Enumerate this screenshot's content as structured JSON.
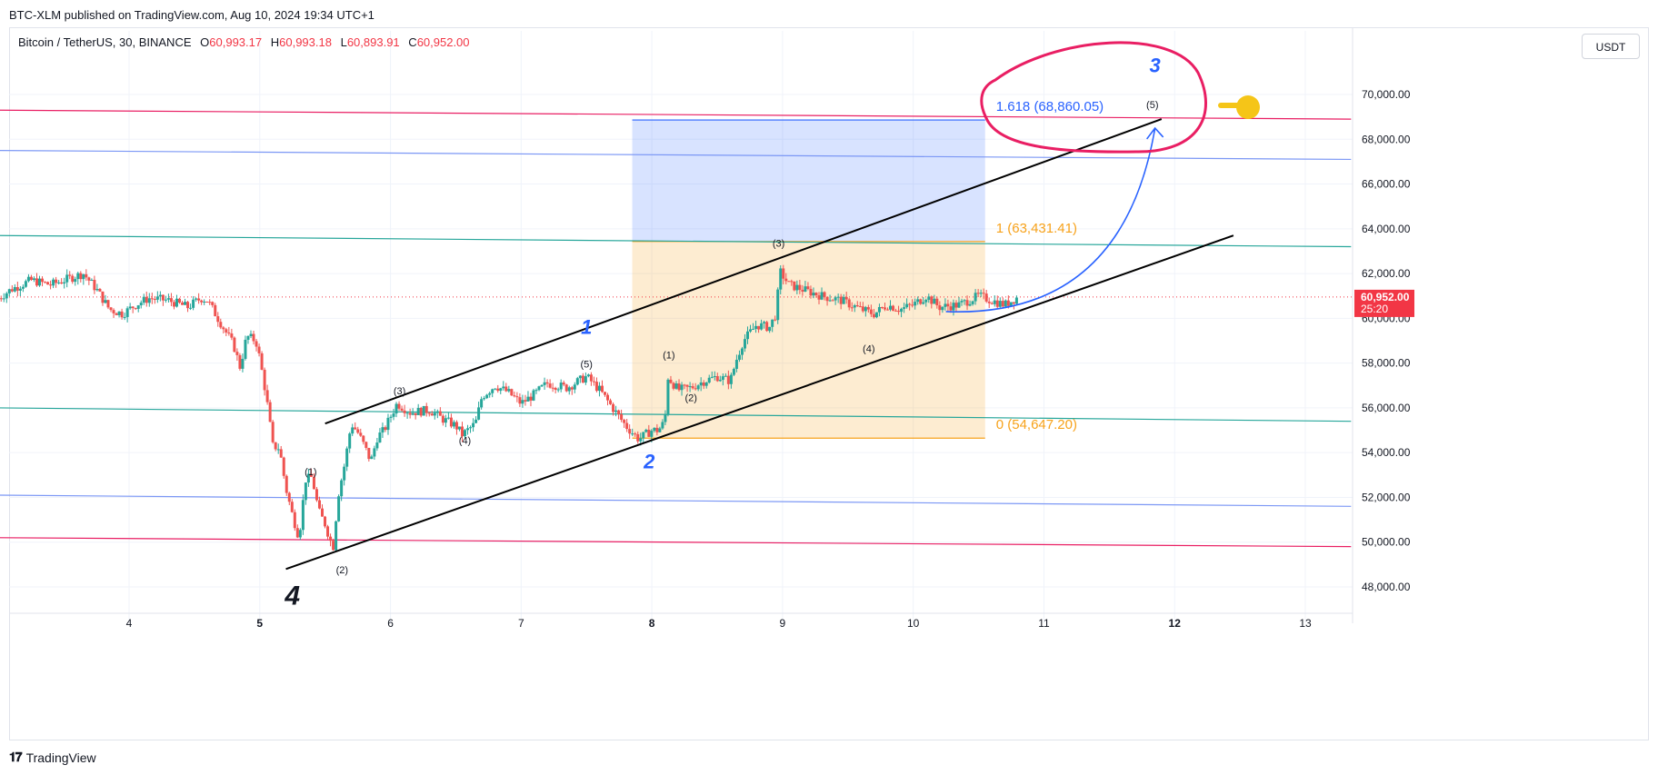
{
  "header": {
    "published": "BTC-XLM published on TradingView.com, Aug 10, 2024 19:34 UTC+1"
  },
  "legend": {
    "symbol": "Bitcoin / TetherUS, 30, BINANCE",
    "o_label": "O",
    "o_value": "60,993.17",
    "h_label": "H",
    "h_value": "60,993.18",
    "l_label": "L",
    "l_value": "60,893.91",
    "c_label": "C",
    "c_value": "60,952.00"
  },
  "currency_button": "USDT",
  "footer": {
    "brand": "TradingView",
    "logo_icon": "tradingview-logo-icon"
  },
  "colors": {
    "up": "#26a69a",
    "down": "#ef5350",
    "price_tag": "#f23645",
    "fib_blue": "#2962ff",
    "fib_orange": "#f7a21b",
    "ellipse": "#e91e63",
    "channel": "#000000",
    "hand": "#f5c518"
  },
  "chart_data": {
    "type": "candlestick",
    "x_axis": {
      "ticks": [
        "4",
        "5",
        "6",
        "7",
        "8",
        "9",
        "10",
        "11",
        "12",
        "13"
      ],
      "bold_ticks": [
        "5",
        "8",
        "12"
      ]
    },
    "y_axis": {
      "range": [
        46800,
        72400
      ],
      "ticks": [
        "48,000.00",
        "50,000.00",
        "52,000.00",
        "54,000.00",
        "56,000.00",
        "58,000.00",
        "60,000.00",
        "62,000.00",
        "64,000.00",
        "66,000.00",
        "68,000.00",
        "70,000.00"
      ]
    },
    "last_price": {
      "value": 60952,
      "label": "60,952.00",
      "countdown": "25:20"
    },
    "close_path": [
      [
        3.0,
        60900
      ],
      [
        3.1,
        61300
      ],
      [
        3.25,
        61700
      ],
      [
        3.4,
        61500
      ],
      [
        3.55,
        61800
      ],
      [
        3.65,
        62000
      ],
      [
        3.75,
        61300
      ],
      [
        3.85,
        60400
      ],
      [
        3.95,
        60200
      ],
      [
        4.05,
        60600
      ],
      [
        4.15,
        60900
      ],
      [
        4.3,
        60800
      ],
      [
        4.45,
        60500
      ],
      [
        4.55,
        60900
      ],
      [
        4.6,
        60800
      ],
      [
        4.7,
        59800
      ],
      [
        4.8,
        58800
      ],
      [
        4.85,
        57800
      ],
      [
        4.9,
        59200
      ],
      [
        4.97,
        59000
      ],
      [
        5.0,
        58200
      ],
      [
        5.05,
        56500
      ],
      [
        5.1,
        54300
      ],
      [
        5.15,
        54200
      ],
      [
        5.2,
        52400
      ],
      [
        5.25,
        51200
      ],
      [
        5.3,
        50200
      ],
      [
        5.35,
        52800
      ],
      [
        5.4,
        52900
      ],
      [
        5.45,
        51400
      ],
      [
        5.5,
        50800
      ],
      [
        5.56,
        49700
      ],
      [
        5.6,
        52100
      ],
      [
        5.65,
        53500
      ],
      [
        5.7,
        55300
      ],
      [
        5.75,
        54900
      ],
      [
        5.8,
        54300
      ],
      [
        5.85,
        53600
      ],
      [
        5.9,
        54700
      ],
      [
        5.95,
        55000
      ],
      [
        6.05,
        56200
      ],
      [
        6.15,
        55800
      ],
      [
        6.3,
        55900
      ],
      [
        6.4,
        55500
      ],
      [
        6.5,
        55200
      ],
      [
        6.55,
        54800
      ],
      [
        6.65,
        55300
      ],
      [
        6.7,
        56500
      ],
      [
        6.8,
        57000
      ],
      [
        6.9,
        56700
      ],
      [
        7.0,
        56200
      ],
      [
        7.1,
        56600
      ],
      [
        7.2,
        57100
      ],
      [
        7.35,
        56900
      ],
      [
        7.5,
        57400
      ],
      [
        7.6,
        56800
      ],
      [
        7.7,
        56000
      ],
      [
        7.8,
        55200
      ],
      [
        7.9,
        54600
      ],
      [
        8.0,
        55000
      ],
      [
        8.05,
        55000
      ],
      [
        8.1,
        55400
      ],
      [
        8.12,
        57400
      ],
      [
        8.2,
        56800
      ],
      [
        8.3,
        56900
      ],
      [
        8.4,
        57200
      ],
      [
        8.5,
        57400
      ],
      [
        8.6,
        57200
      ],
      [
        8.65,
        58200
      ],
      [
        8.7,
        59000
      ],
      [
        8.8,
        59700
      ],
      [
        8.9,
        59600
      ],
      [
        8.95,
        60200
      ],
      [
        8.98,
        62100
      ],
      [
        9.05,
        61500
      ],
      [
        9.15,
        61300
      ],
      [
        9.3,
        61000
      ],
      [
        9.45,
        60800
      ],
      [
        9.6,
        60400
      ],
      [
        9.7,
        60200
      ],
      [
        9.8,
        60600
      ],
      [
        9.9,
        60400
      ],
      [
        10.0,
        60600
      ],
      [
        10.1,
        61000
      ],
      [
        10.2,
        60500
      ],
      [
        10.35,
        60600
      ],
      [
        10.5,
        61000
      ],
      [
        10.6,
        60800
      ],
      [
        10.7,
        60600
      ],
      [
        10.8,
        60952
      ]
    ],
    "horizontal_lines": [
      {
        "color": "#e91e63",
        "from": [
          3.0,
          69300
        ],
        "to": [
          13.35,
          68900
        ]
      },
      {
        "color": "#7b97f5",
        "from": [
          3.0,
          67500
        ],
        "to": [
          13.35,
          67100
        ]
      },
      {
        "color": "#26a69a",
        "from": [
          3.0,
          63700
        ],
        "to": [
          13.35,
          63200
        ]
      },
      {
        "color": "#26a69a",
        "from": [
          3.0,
          56000
        ],
        "to": [
          13.35,
          55400
        ]
      },
      {
        "color": "#7b97f5",
        "from": [
          3.0,
          52100
        ],
        "to": [
          13.35,
          51600
        ]
      },
      {
        "color": "#e91e63",
        "from": [
          3.0,
          50200
        ],
        "to": [
          13.35,
          49800
        ]
      }
    ],
    "channel_lines": [
      {
        "from": [
          5.5,
          55300
        ],
        "to": [
          11.9,
          68900
        ]
      },
      {
        "from": [
          5.2,
          48800
        ],
        "to": [
          12.45,
          63700
        ]
      }
    ],
    "fib": {
      "x_range": [
        7.85,
        10.55
      ],
      "levels": [
        {
          "ratio": "1.618",
          "value": 68860.05,
          "label": "1.618 (68,860.05)",
          "color": "#2962ff"
        },
        {
          "ratio": "1",
          "value": 63431.41,
          "label": "1 (63,431.41)",
          "color": "#f7a21b"
        },
        {
          "ratio": "0",
          "value": 54647.2,
          "label": "0 (54,647.20)",
          "color": "#f7a21b"
        }
      ]
    },
    "wave_labels": [
      {
        "text": "(1)",
        "x": 5.39,
        "y": 53000
      },
      {
        "text": "(2)",
        "x": 5.63,
        "y": 48600
      },
      {
        "text": "(3)",
        "x": 6.07,
        "y": 56600
      },
      {
        "text": "(4)",
        "x": 6.57,
        "y": 54400
      },
      {
        "text": "(5)",
        "x": 7.5,
        "y": 57800
      },
      {
        "text": "(1)",
        "x": 8.13,
        "y": 58200
      },
      {
        "text": "(2)",
        "x": 8.3,
        "y": 56300
      },
      {
        "text": "(3)",
        "x": 8.97,
        "y": 63200
      },
      {
        "text": "(4)",
        "x": 9.66,
        "y": 58500
      },
      {
        "text": "(5)",
        "x": 11.83,
        "y": 69400
      }
    ],
    "primary_labels": [
      {
        "text": "1",
        "x": 7.5,
        "y": 59300,
        "color": "#2962ff",
        "size": 22
      },
      {
        "text": "2",
        "x": 7.98,
        "y": 53300,
        "color": "#2962ff",
        "size": 22
      },
      {
        "text": "3",
        "x": 11.85,
        "y": 71000,
        "color": "#2962ff",
        "size": 22
      },
      {
        "text": "4",
        "x": 5.25,
        "y": 47200,
        "color": "#131722",
        "size": 30
      }
    ]
  }
}
